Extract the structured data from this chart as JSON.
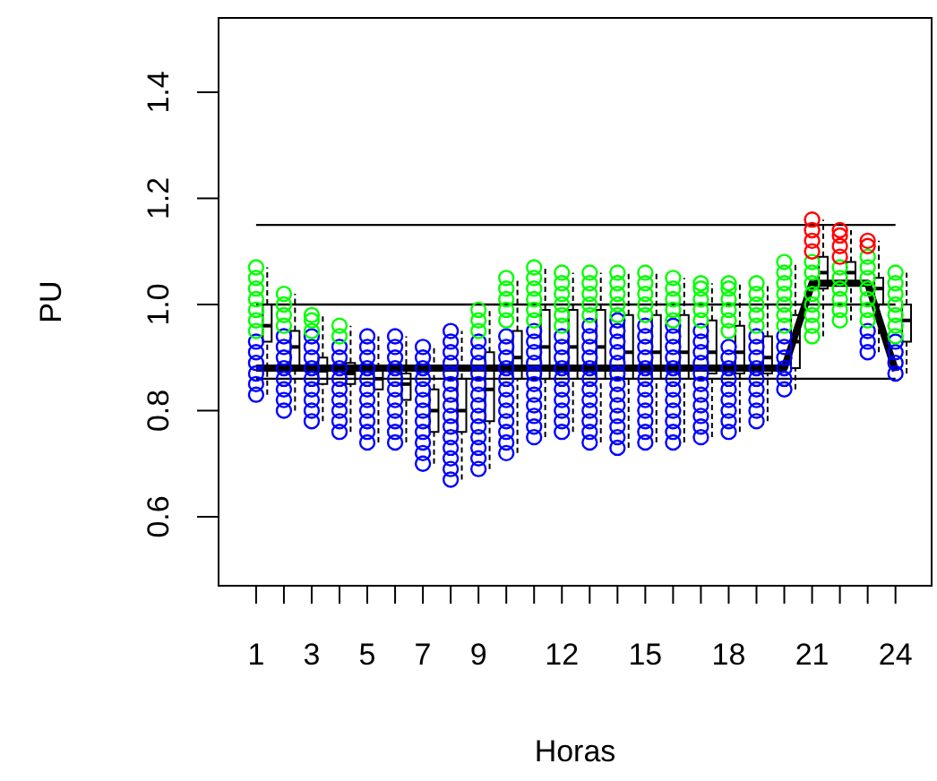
{
  "chart_data": {
    "type": "scatter",
    "xlabel": "Horas",
    "ylabel": "PU",
    "xlim": [
      -0.35,
      25.3
    ],
    "ylim": [
      0.47,
      1.54
    ],
    "xticks": [
      1,
      {
        "value": 2,
        "label": null
      },
      3,
      {
        "value": 4,
        "label": null
      },
      5,
      {
        "value": 6,
        "label": null
      },
      7,
      {
        "value": 8,
        "label": null
      },
      9,
      {
        "value": 10,
        "label": null
      },
      {
        "value": 11,
        "label": null
      },
      12,
      {
        "value": 13,
        "label": null
      },
      {
        "value": 14,
        "label": null
      },
      15,
      {
        "value": 16,
        "label": null
      },
      {
        "value": 17,
        "label": null
      },
      18,
      {
        "value": 19,
        "label": null
      },
      {
        "value": 20,
        "label": null
      },
      21,
      {
        "value": 22,
        "label": null
      },
      {
        "value": 23,
        "label": null
      },
      24
    ],
    "yticks": [
      0.6,
      0.8,
      {
        "value": 1,
        "label": "1.0"
      },
      1.2,
      1.4
    ],
    "grid": false,
    "marker": "circle",
    "ref_lines": [
      {
        "axis": "y",
        "value": 1.15,
        "color": "#000000"
      },
      {
        "axis": "y",
        "value": 1.0,
        "color": "#000000"
      },
      {
        "axis": "y",
        "value": 0.86,
        "color": "#000000"
      }
    ],
    "series": [
      {
        "color": "#0000ff",
        "x": [
          1,
          1,
          1,
          1,
          1,
          1,
          2,
          2,
          2,
          2,
          2,
          2,
          2,
          2,
          3,
          3,
          3,
          3,
          3,
          3,
          3,
          3,
          3,
          4,
          4,
          4,
          4,
          4,
          4,
          4,
          4,
          4,
          5,
          5,
          5,
          5,
          5,
          5,
          5,
          5,
          5,
          5,
          5,
          6,
          6,
          6,
          6,
          6,
          6,
          6,
          6,
          6,
          6,
          6,
          7,
          7,
          7,
          7,
          7,
          7,
          7,
          7,
          7,
          7,
          7,
          7,
          8,
          8,
          8,
          8,
          8,
          8,
          8,
          8,
          8,
          8,
          8,
          8,
          8,
          8,
          8,
          9,
          9,
          9,
          9,
          9,
          9,
          9,
          9,
          9,
          9,
          9,
          9,
          9,
          10,
          10,
          10,
          10,
          10,
          10,
          10,
          10,
          10,
          10,
          10,
          10,
          11,
          11,
          11,
          11,
          11,
          11,
          11,
          11,
          11,
          11,
          11,
          12,
          12,
          12,
          12,
          12,
          12,
          12,
          12,
          12,
          12,
          13,
          13,
          13,
          13,
          13,
          13,
          13,
          13,
          13,
          13,
          13,
          13,
          14,
          14,
          14,
          14,
          14,
          14,
          14,
          14,
          14,
          14,
          14,
          14,
          14,
          15,
          15,
          15,
          15,
          15,
          15,
          15,
          15,
          15,
          15,
          15,
          15,
          16,
          16,
          16,
          16,
          16,
          16,
          16,
          16,
          16,
          16,
          16,
          16,
          17,
          17,
          17,
          17,
          17,
          17,
          17,
          17,
          17,
          17,
          17,
          18,
          18,
          18,
          18,
          18,
          18,
          18,
          18,
          18,
          19,
          19,
          19,
          19,
          19,
          19,
          19,
          19,
          19,
          20,
          20,
          20,
          20,
          20,
          20,
          23,
          23,
          23,
          24,
          24,
          24,
          24
        ],
        "values": [
          0.83,
          0.85,
          0.87,
          0.89,
          0.91,
          0.93,
          0.8,
          0.82,
          0.84,
          0.86,
          0.88,
          0.9,
          0.92,
          0.94,
          0.78,
          0.8,
          0.82,
          0.84,
          0.86,
          0.88,
          0.9,
          0.92,
          0.94,
          0.76,
          0.78,
          0.8,
          0.82,
          0.84,
          0.86,
          0.88,
          0.9,
          0.92,
          0.74,
          0.76,
          0.78,
          0.8,
          0.82,
          0.84,
          0.86,
          0.88,
          0.9,
          0.92,
          0.94,
          0.74,
          0.76,
          0.78,
          0.8,
          0.82,
          0.84,
          0.86,
          0.88,
          0.9,
          0.92,
          0.94,
          0.7,
          0.72,
          0.74,
          0.76,
          0.78,
          0.8,
          0.82,
          0.84,
          0.86,
          0.88,
          0.9,
          0.92,
          0.67,
          0.69,
          0.71,
          0.73,
          0.75,
          0.77,
          0.79,
          0.81,
          0.83,
          0.85,
          0.87,
          0.89,
          0.91,
          0.93,
          0.95,
          0.69,
          0.71,
          0.73,
          0.75,
          0.77,
          0.79,
          0.81,
          0.83,
          0.85,
          0.87,
          0.89,
          0.91,
          0.93,
          0.72,
          0.74,
          0.76,
          0.78,
          0.8,
          0.82,
          0.84,
          0.86,
          0.88,
          0.9,
          0.92,
          0.94,
          0.75,
          0.77,
          0.79,
          0.81,
          0.83,
          0.85,
          0.87,
          0.89,
          0.91,
          0.93,
          0.95,
          0.76,
          0.78,
          0.8,
          0.82,
          0.84,
          0.86,
          0.88,
          0.9,
          0.92,
          0.94,
          0.74,
          0.76,
          0.78,
          0.8,
          0.82,
          0.84,
          0.86,
          0.88,
          0.9,
          0.92,
          0.94,
          0.96,
          0.73,
          0.75,
          0.77,
          0.79,
          0.81,
          0.83,
          0.85,
          0.87,
          0.89,
          0.91,
          0.93,
          0.95,
          0.97,
          0.74,
          0.76,
          0.78,
          0.8,
          0.82,
          0.84,
          0.86,
          0.88,
          0.9,
          0.92,
          0.94,
          0.96,
          0.74,
          0.76,
          0.78,
          0.8,
          0.82,
          0.84,
          0.86,
          0.88,
          0.9,
          0.92,
          0.94,
          0.96,
          0.75,
          0.77,
          0.79,
          0.81,
          0.83,
          0.85,
          0.87,
          0.89,
          0.91,
          0.93,
          0.95,
          0.76,
          0.78,
          0.8,
          0.82,
          0.84,
          0.86,
          0.88,
          0.9,
          0.92,
          0.78,
          0.8,
          0.82,
          0.84,
          0.86,
          0.88,
          0.9,
          0.92,
          0.94,
          0.84,
          0.86,
          0.88,
          0.9,
          0.92,
          0.94,
          0.91,
          0.93,
          0.95,
          0.87,
          0.89,
          0.91,
          0.93
        ]
      },
      {
        "color": "#00ff00",
        "x": [
          1,
          1,
          1,
          1,
          1,
          1,
          1,
          2,
          2,
          2,
          2,
          3,
          3,
          3,
          4,
          4,
          9,
          9,
          9,
          10,
          10,
          10,
          10,
          10,
          11,
          11,
          11,
          11,
          11,
          11,
          12,
          12,
          12,
          12,
          12,
          12,
          13,
          13,
          13,
          13,
          13,
          14,
          14,
          14,
          14,
          14,
          15,
          15,
          15,
          15,
          15,
          16,
          16,
          16,
          16,
          16,
          17,
          17,
          17,
          17,
          17,
          18,
          18,
          18,
          18,
          18,
          18,
          19,
          19,
          19,
          19,
          19,
          20,
          20,
          20,
          20,
          20,
          20,
          20,
          21,
          21,
          21,
          21,
          21,
          21,
          21,
          21,
          22,
          22,
          22,
          22,
          22,
          22,
          23,
          23,
          23,
          23,
          23,
          23,
          23,
          24,
          24,
          24,
          24,
          24,
          24,
          24
        ],
        "values": [
          0.95,
          0.97,
          0.99,
          1.01,
          1.03,
          1.05,
          1.07,
          0.96,
          0.98,
          1.0,
          1.02,
          0.95,
          0.97,
          0.98,
          0.94,
          0.96,
          0.95,
          0.97,
          0.99,
          0.97,
          0.99,
          1.01,
          1.03,
          1.05,
          0.97,
          0.99,
          1.01,
          1.03,
          1.05,
          1.07,
          0.96,
          0.98,
          1.0,
          1.02,
          1.04,
          1.06,
          0.98,
          1.0,
          1.02,
          1.04,
          1.06,
          0.98,
          1.0,
          1.02,
          1.04,
          1.06,
          0.98,
          1.0,
          1.02,
          1.04,
          1.06,
          0.97,
          0.99,
          1.01,
          1.03,
          1.05,
          0.97,
          0.99,
          1.01,
          1.03,
          1.04,
          0.95,
          0.97,
          0.99,
          1.01,
          1.03,
          1.04,
          0.96,
          0.98,
          1.0,
          1.02,
          1.04,
          0.96,
          0.98,
          1.0,
          1.02,
          1.04,
          1.06,
          1.08,
          0.94,
          0.96,
          0.98,
          1.0,
          1.02,
          1.04,
          1.06,
          1.08,
          0.97,
          0.99,
          1.01,
          1.03,
          1.05,
          1.07,
          0.97,
          0.99,
          1.01,
          1.03,
          1.05,
          1.07,
          1.09,
          0.94,
          0.96,
          0.98,
          1.0,
          1.02,
          1.04,
          1.06
        ]
      },
      {
        "color": "#ff0000",
        "x": [
          21,
          21,
          21,
          21,
          22,
          22,
          22,
          22,
          23,
          23
        ],
        "values": [
          1.1,
          1.12,
          1.14,
          1.16,
          1.09,
          1.11,
          1.13,
          1.14,
          1.11,
          1.12
        ]
      },
      {
        "type": "box",
        "color": "#000000",
        "x": [
          1.4,
          2.4,
          3.4,
          4.4,
          5.4,
          6.4,
          7.4,
          8.4,
          9.4,
          10.4,
          11.4,
          12.4,
          13.4,
          14.4,
          15.4,
          16.4,
          17.4,
          18.4,
          19.4,
          20.4,
          21.4,
          22.4,
          23.4,
          24.4
        ],
        "boxes": [
          {
            "low": 0.83,
            "q1": 0.93,
            "median": 0.96,
            "q3": 1.0,
            "high": 1.07
          },
          {
            "low": 0.8,
            "q1": 0.88,
            "median": 0.92,
            "q3": 0.95,
            "high": 1.02
          },
          {
            "low": 0.78,
            "q1": 0.85,
            "median": 0.875,
            "q3": 0.9,
            "high": 0.98
          },
          {
            "low": 0.76,
            "q1": 0.85,
            "median": 0.87,
            "q3": 0.89,
            "high": 0.96
          },
          {
            "low": 0.74,
            "q1": 0.84,
            "median": 0.86,
            "q3": 0.88,
            "high": 0.94
          },
          {
            "low": 0.74,
            "q1": 0.82,
            "median": 0.85,
            "q3": 0.87,
            "high": 0.94
          },
          {
            "low": 0.7,
            "q1": 0.76,
            "median": 0.8,
            "q3": 0.84,
            "high": 0.92
          },
          {
            "low": 0.67,
            "q1": 0.76,
            "median": 0.8,
            "q3": 0.86,
            "high": 0.95
          },
          {
            "low": 0.69,
            "q1": 0.78,
            "median": 0.84,
            "q3": 0.91,
            "high": 0.99
          },
          {
            "low": 0.72,
            "q1": 0.86,
            "median": 0.9,
            "q3": 0.95,
            "high": 1.05
          },
          {
            "low": 0.75,
            "q1": 0.86,
            "median": 0.92,
            "q3": 0.99,
            "high": 1.07
          },
          {
            "low": 0.76,
            "q1": 0.86,
            "median": 0.92,
            "q3": 0.99,
            "high": 1.06
          },
          {
            "low": 0.74,
            "q1": 0.86,
            "median": 0.92,
            "q3": 0.99,
            "high": 1.06
          },
          {
            "low": 0.73,
            "q1": 0.86,
            "median": 0.91,
            "q3": 0.98,
            "high": 1.06
          },
          {
            "low": 0.74,
            "q1": 0.86,
            "median": 0.91,
            "q3": 0.98,
            "high": 1.06
          },
          {
            "low": 0.74,
            "q1": 0.86,
            "median": 0.91,
            "q3": 0.98,
            "high": 1.05
          },
          {
            "low": 0.75,
            "q1": 0.87,
            "median": 0.91,
            "q3": 0.97,
            "high": 1.04
          },
          {
            "low": 0.76,
            "q1": 0.87,
            "median": 0.91,
            "q3": 0.96,
            "high": 1.04
          },
          {
            "low": 0.78,
            "q1": 0.87,
            "median": 0.9,
            "q3": 0.94,
            "high": 1.04
          },
          {
            "low": 0.84,
            "q1": 0.88,
            "median": 0.93,
            "q3": 0.98,
            "high": 1.08
          },
          {
            "low": 0.94,
            "q1": 1.03,
            "median": 1.06,
            "q3": 1.09,
            "high": 1.16
          },
          {
            "low": 0.97,
            "q1": 1.04,
            "median": 1.06,
            "q3": 1.08,
            "high": 1.14
          },
          {
            "low": 0.91,
            "q1": 1.0,
            "median": 1.03,
            "q3": 1.05,
            "high": 1.12
          },
          {
            "low": 0.87,
            "q1": 0.93,
            "median": 0.97,
            "q3": 1.0,
            "high": 1.06
          }
        ]
      },
      {
        "type": "line",
        "color": "#000000",
        "marker": "none",
        "x": [
          1,
          20,
          21,
          22,
          23,
          24
        ],
        "values": [
          0.88,
          0.88,
          1.04,
          1.04,
          1.04,
          0.875
        ]
      }
    ]
  }
}
